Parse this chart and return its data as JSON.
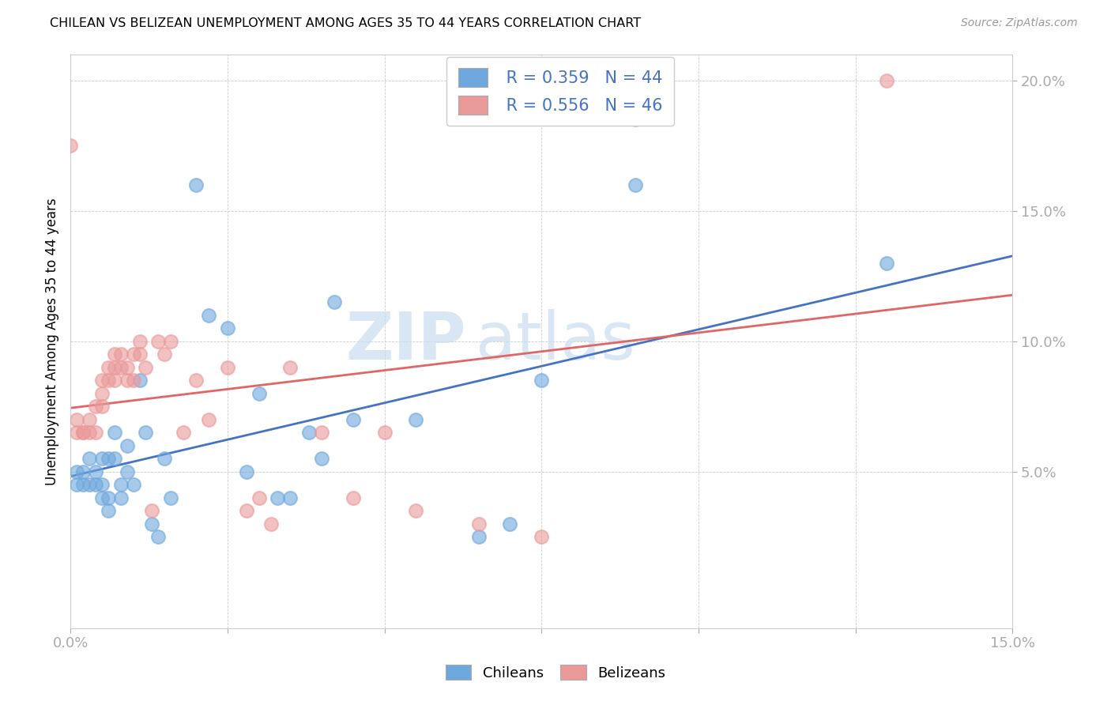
{
  "title": "CHILEAN VS BELIZEAN UNEMPLOYMENT AMONG AGES 35 TO 44 YEARS CORRELATION CHART",
  "source": "Source: ZipAtlas.com",
  "ylabel": "Unemployment Among Ages 35 to 44 years",
  "xlim": [
    0,
    0.15
  ],
  "ylim": [
    -0.01,
    0.21
  ],
  "xticks": [
    0.0,
    0.025,
    0.05,
    0.075,
    0.1,
    0.125,
    0.15
  ],
  "yticks": [
    0.05,
    0.1,
    0.15,
    0.2
  ],
  "ytick_labels": [
    "5.0%",
    "10.0%",
    "15.0%",
    "20.0%"
  ],
  "xtick_labels": [
    "0.0%",
    "",
    "",
    "",
    "",
    "",
    "15.0%"
  ],
  "legend_r_blue": "R = 0.359",
  "legend_n_blue": "N = 44",
  "legend_r_pink": "R = 0.556",
  "legend_n_pink": "N = 46",
  "legend_label_blue": "Chileans",
  "legend_label_pink": "Belizeans",
  "blue_color": "#6fa8dc",
  "pink_color": "#ea9999",
  "blue_line_color": "#4472c4",
  "pink_line_color": "#e06666",
  "text_color": "#4472c4",
  "watermark_part1": "ZIP",
  "watermark_part2": "atlas",
  "blue_scatter_x": [
    0.001,
    0.001,
    0.002,
    0.002,
    0.003,
    0.003,
    0.004,
    0.004,
    0.005,
    0.005,
    0.005,
    0.006,
    0.006,
    0.006,
    0.007,
    0.007,
    0.008,
    0.008,
    0.009,
    0.009,
    0.01,
    0.011,
    0.012,
    0.013,
    0.014,
    0.015,
    0.016,
    0.02,
    0.022,
    0.025,
    0.028,
    0.03,
    0.033,
    0.035,
    0.038,
    0.04,
    0.042,
    0.045,
    0.055,
    0.065,
    0.07,
    0.075,
    0.09,
    0.13
  ],
  "blue_scatter_y": [
    0.045,
    0.05,
    0.045,
    0.05,
    0.045,
    0.055,
    0.05,
    0.045,
    0.04,
    0.045,
    0.055,
    0.04,
    0.035,
    0.055,
    0.055,
    0.065,
    0.04,
    0.045,
    0.06,
    0.05,
    0.045,
    0.085,
    0.065,
    0.03,
    0.025,
    0.055,
    0.04,
    0.16,
    0.11,
    0.105,
    0.05,
    0.08,
    0.04,
    0.04,
    0.065,
    0.055,
    0.115,
    0.07,
    0.07,
    0.025,
    0.03,
    0.085,
    0.16,
    0.13
  ],
  "pink_scatter_x": [
    0.0,
    0.001,
    0.001,
    0.002,
    0.002,
    0.003,
    0.003,
    0.004,
    0.004,
    0.005,
    0.005,
    0.005,
    0.006,
    0.006,
    0.007,
    0.007,
    0.007,
    0.008,
    0.008,
    0.009,
    0.009,
    0.01,
    0.01,
    0.011,
    0.011,
    0.012,
    0.013,
    0.014,
    0.015,
    0.016,
    0.018,
    0.02,
    0.022,
    0.025,
    0.028,
    0.03,
    0.032,
    0.035,
    0.04,
    0.045,
    0.05,
    0.055,
    0.065,
    0.075,
    0.09,
    0.13
  ],
  "pink_scatter_y": [
    0.175,
    0.065,
    0.07,
    0.065,
    0.065,
    0.07,
    0.065,
    0.075,
    0.065,
    0.08,
    0.075,
    0.085,
    0.085,
    0.09,
    0.085,
    0.09,
    0.095,
    0.09,
    0.095,
    0.085,
    0.09,
    0.095,
    0.085,
    0.095,
    0.1,
    0.09,
    0.035,
    0.1,
    0.095,
    0.1,
    0.065,
    0.085,
    0.07,
    0.09,
    0.035,
    0.04,
    0.03,
    0.09,
    0.065,
    0.04,
    0.065,
    0.035,
    0.03,
    0.025,
    0.185,
    0.2
  ]
}
